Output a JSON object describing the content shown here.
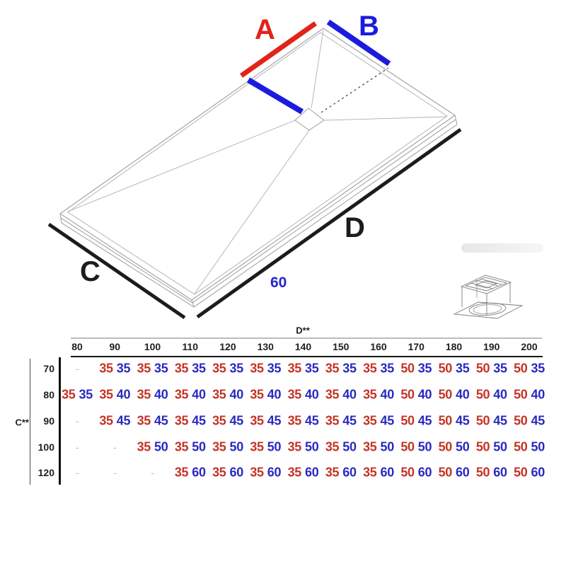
{
  "diagram": {
    "label_a": "A",
    "label_b": "B",
    "label_c": "C",
    "label_d": "D",
    "edge_note": "60",
    "colors": {
      "dim_red": "#e2231a",
      "dim_blue": "#1b1be0",
      "dim_black": "#1c1c1c",
      "table_red": "#c53325",
      "table_blue": "#2929c0"
    }
  },
  "table": {
    "col_axis_label": "D**",
    "row_axis_label": "C**",
    "empty_cell": "-",
    "columns": [
      "80",
      "90",
      "100",
      "110",
      "120",
      "130",
      "140",
      "150",
      "160",
      "170",
      "180",
      "190",
      "200"
    ],
    "rows": [
      {
        "label": "70",
        "cells": [
          null,
          [
            35,
            35
          ],
          [
            35,
            35
          ],
          [
            35,
            35
          ],
          [
            35,
            35
          ],
          [
            35,
            35
          ],
          [
            35,
            35
          ],
          [
            35,
            35
          ],
          [
            35,
            35
          ],
          [
            50,
            35
          ],
          [
            50,
            35
          ],
          [
            50,
            35
          ],
          [
            50,
            35
          ]
        ]
      },
      {
        "label": "80",
        "cells": [
          [
            35,
            35
          ],
          [
            35,
            40
          ],
          [
            35,
            40
          ],
          [
            35,
            40
          ],
          [
            35,
            40
          ],
          [
            35,
            40
          ],
          [
            35,
            40
          ],
          [
            35,
            40
          ],
          [
            35,
            40
          ],
          [
            50,
            40
          ],
          [
            50,
            40
          ],
          [
            50,
            40
          ],
          [
            50,
            40
          ]
        ]
      },
      {
        "label": "90",
        "cells": [
          null,
          [
            35,
            45
          ],
          [
            35,
            45
          ],
          [
            35,
            45
          ],
          [
            35,
            45
          ],
          [
            35,
            45
          ],
          [
            35,
            45
          ],
          [
            35,
            45
          ],
          [
            35,
            45
          ],
          [
            50,
            45
          ],
          [
            50,
            45
          ],
          [
            50,
            45
          ],
          [
            50,
            45
          ]
        ]
      },
      {
        "label": "100",
        "cells": [
          null,
          null,
          [
            35,
            50
          ],
          [
            35,
            50
          ],
          [
            35,
            50
          ],
          [
            35,
            50
          ],
          [
            35,
            50
          ],
          [
            35,
            50
          ],
          [
            35,
            50
          ],
          [
            50,
            50
          ],
          [
            50,
            50
          ],
          [
            50,
            50
          ],
          [
            50,
            50
          ]
        ]
      },
      {
        "label": "120",
        "cells": [
          null,
          null,
          null,
          [
            35,
            60
          ],
          [
            35,
            60
          ],
          [
            35,
            60
          ],
          [
            35,
            60
          ],
          [
            35,
            60
          ],
          [
            35,
            60
          ],
          [
            50,
            60
          ],
          [
            50,
            60
          ],
          [
            50,
            60
          ],
          [
            50,
            60
          ]
        ]
      }
    ]
  }
}
